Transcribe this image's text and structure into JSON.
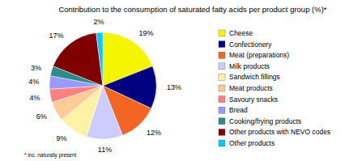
{
  "chart_data": {
    "type": "pie",
    "title": "Contribution to the consumption of saturated fatty acids per product group (%)*",
    "categories": [
      "Cheese",
      "Confectionery",
      "Meat (preparations)",
      "Milk products",
      "Sandwich fillings",
      "Meat products",
      "Savoury snacks",
      "Bread",
      "Cooking/frying products",
      "Other products with NEVO codes",
      "Other products"
    ],
    "values": [
      19,
      13,
      12,
      11,
      9,
      6,
      4,
      4,
      3,
      17,
      2
    ],
    "value_labels": [
      "19%",
      "13%",
      "12%",
      "11%",
      "9%",
      "6%",
      "4%",
      "4%",
      "3%",
      "17%",
      "2%"
    ],
    "colors": [
      "#f5f500",
      "#000080",
      "#f26522",
      "#ccccff",
      "#fff2a6",
      "#ffcc99",
      "#ff8080",
      "#9999ff",
      "#2e8b8b",
      "#800000",
      "#00ccff"
    ],
    "data_labels": true,
    "legend": "right",
    "annotations": [
      "* inc. naturally present"
    ]
  }
}
